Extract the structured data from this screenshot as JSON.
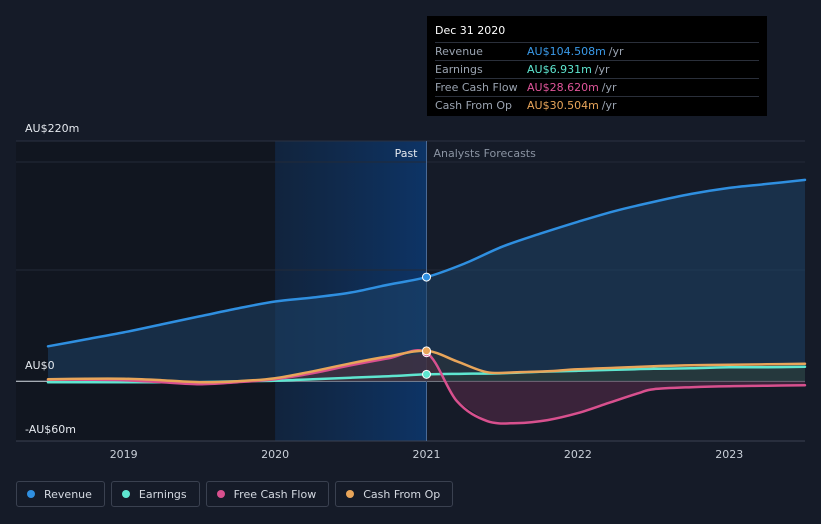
{
  "tooltip": {
    "date": "Dec 31 2020",
    "rows": [
      {
        "label": "Revenue",
        "value": "AU$104.508m",
        "unit": "/yr",
        "color": "#3a9ae8"
      },
      {
        "label": "Earnings",
        "value": "AU$6.931m",
        "unit": "/yr",
        "color": "#5ee6d0"
      },
      {
        "label": "Free Cash Flow",
        "value": "AU$28.620m",
        "unit": "/yr",
        "color": "#e0559a"
      },
      {
        "label": "Cash From Op",
        "value": "AU$30.504m",
        "unit": "/yr",
        "color": "#e8a55a"
      }
    ]
  },
  "legend": [
    {
      "label": "Revenue",
      "color": "#2f8fe0"
    },
    {
      "label": "Earnings",
      "color": "#5ee6d0"
    },
    {
      "label": "Free Cash Flow",
      "color": "#d8508e"
    },
    {
      "label": "Cash From Op",
      "color": "#e8a55a"
    }
  ],
  "chart_data": {
    "type": "line",
    "y_tick_labels": [
      "AU$220m",
      "AU$0",
      "-AU$60m"
    ],
    "ylim": [
      -60,
      220
    ],
    "x_tick_labels": [
      "2019",
      "2020",
      "2021",
      "2022",
      "2023"
    ],
    "x_ticks": [
      2019,
      2020,
      2021,
      2022,
      2023
    ],
    "xlim": [
      2018.5,
      2023.5
    ],
    "past_label": "Past",
    "forecast_label": "Analysts Forecasts",
    "divider_x": 2021,
    "highlight_start_x": 2020,
    "grid": true,
    "series": [
      {
        "name": "Revenue",
        "color": "#2f8fe0",
        "points": [
          [
            2018.5,
            35
          ],
          [
            2018.75,
            42
          ],
          [
            2019,
            49
          ],
          [
            2019.25,
            57
          ],
          [
            2019.5,
            65
          ],
          [
            2019.75,
            73
          ],
          [
            2020,
            80
          ],
          [
            2020.25,
            84
          ],
          [
            2020.5,
            89
          ],
          [
            2020.75,
            97
          ],
          [
            2021,
            104.5
          ],
          [
            2021.25,
            118
          ],
          [
            2021.5,
            135
          ],
          [
            2021.75,
            148
          ],
          [
            2022,
            160
          ],
          [
            2022.25,
            171
          ],
          [
            2022.5,
            180
          ],
          [
            2022.75,
            188
          ],
          [
            2023,
            194
          ],
          [
            2023.25,
            198
          ],
          [
            2023.5,
            202
          ]
        ]
      },
      {
        "name": "Earnings",
        "color": "#5ee6d0",
        "points": [
          [
            2018.5,
            -1
          ],
          [
            2018.75,
            -1
          ],
          [
            2019,
            -1
          ],
          [
            2019.25,
            -1
          ],
          [
            2019.5,
            -1
          ],
          [
            2019.75,
            0
          ],
          [
            2020,
            0.5
          ],
          [
            2020.25,
            2
          ],
          [
            2020.5,
            3.5
          ],
          [
            2020.75,
            5
          ],
          [
            2021,
            6.9
          ],
          [
            2021.25,
            7.5
          ],
          [
            2021.5,
            8
          ],
          [
            2021.75,
            9.5
          ],
          [
            2022,
            10.5
          ],
          [
            2022.25,
            11.5
          ],
          [
            2022.5,
            12.5
          ],
          [
            2022.75,
            13
          ],
          [
            2023,
            14
          ],
          [
            2023.25,
            14
          ],
          [
            2023.5,
            14.5
          ]
        ]
      },
      {
        "name": "Free Cash Flow",
        "color": "#d8508e",
        "points": [
          [
            2018.5,
            1.5
          ],
          [
            2018.75,
            1.5
          ],
          [
            2019,
            1
          ],
          [
            2019.25,
            -1
          ],
          [
            2019.5,
            -3
          ],
          [
            2019.75,
            -1
          ],
          [
            2020,
            2
          ],
          [
            2020.25,
            8
          ],
          [
            2020.5,
            16
          ],
          [
            2020.75,
            23
          ],
          [
            2021,
            28.6
          ],
          [
            2021.2,
            -20
          ],
          [
            2021.4,
            -40
          ],
          [
            2021.6,
            -42
          ],
          [
            2021.8,
            -39
          ],
          [
            2022,
            -32
          ],
          [
            2022.2,
            -22
          ],
          [
            2022.4,
            -12
          ],
          [
            2022.5,
            -8
          ],
          [
            2022.75,
            -6
          ],
          [
            2023,
            -5
          ],
          [
            2023.25,
            -4.5
          ],
          [
            2023.5,
            -4
          ]
        ]
      },
      {
        "name": "Cash From Op",
        "color": "#e8a55a",
        "points": [
          [
            2018.5,
            2
          ],
          [
            2018.75,
            2.5
          ],
          [
            2019,
            2.5
          ],
          [
            2019.25,
            1
          ],
          [
            2019.5,
            -1
          ],
          [
            2019.75,
            0
          ],
          [
            2020,
            3
          ],
          [
            2020.25,
            10
          ],
          [
            2020.5,
            18
          ],
          [
            2020.75,
            25
          ],
          [
            2021,
            30.5
          ],
          [
            2021.2,
            20
          ],
          [
            2021.4,
            9
          ],
          [
            2021.6,
            9
          ],
          [
            2021.8,
            10
          ],
          [
            2022,
            12
          ],
          [
            2022.25,
            13.5
          ],
          [
            2022.5,
            15
          ],
          [
            2022.75,
            16
          ],
          [
            2023,
            16.5
          ],
          [
            2023.25,
            17
          ],
          [
            2023.5,
            17.5
          ]
        ]
      }
    ]
  }
}
